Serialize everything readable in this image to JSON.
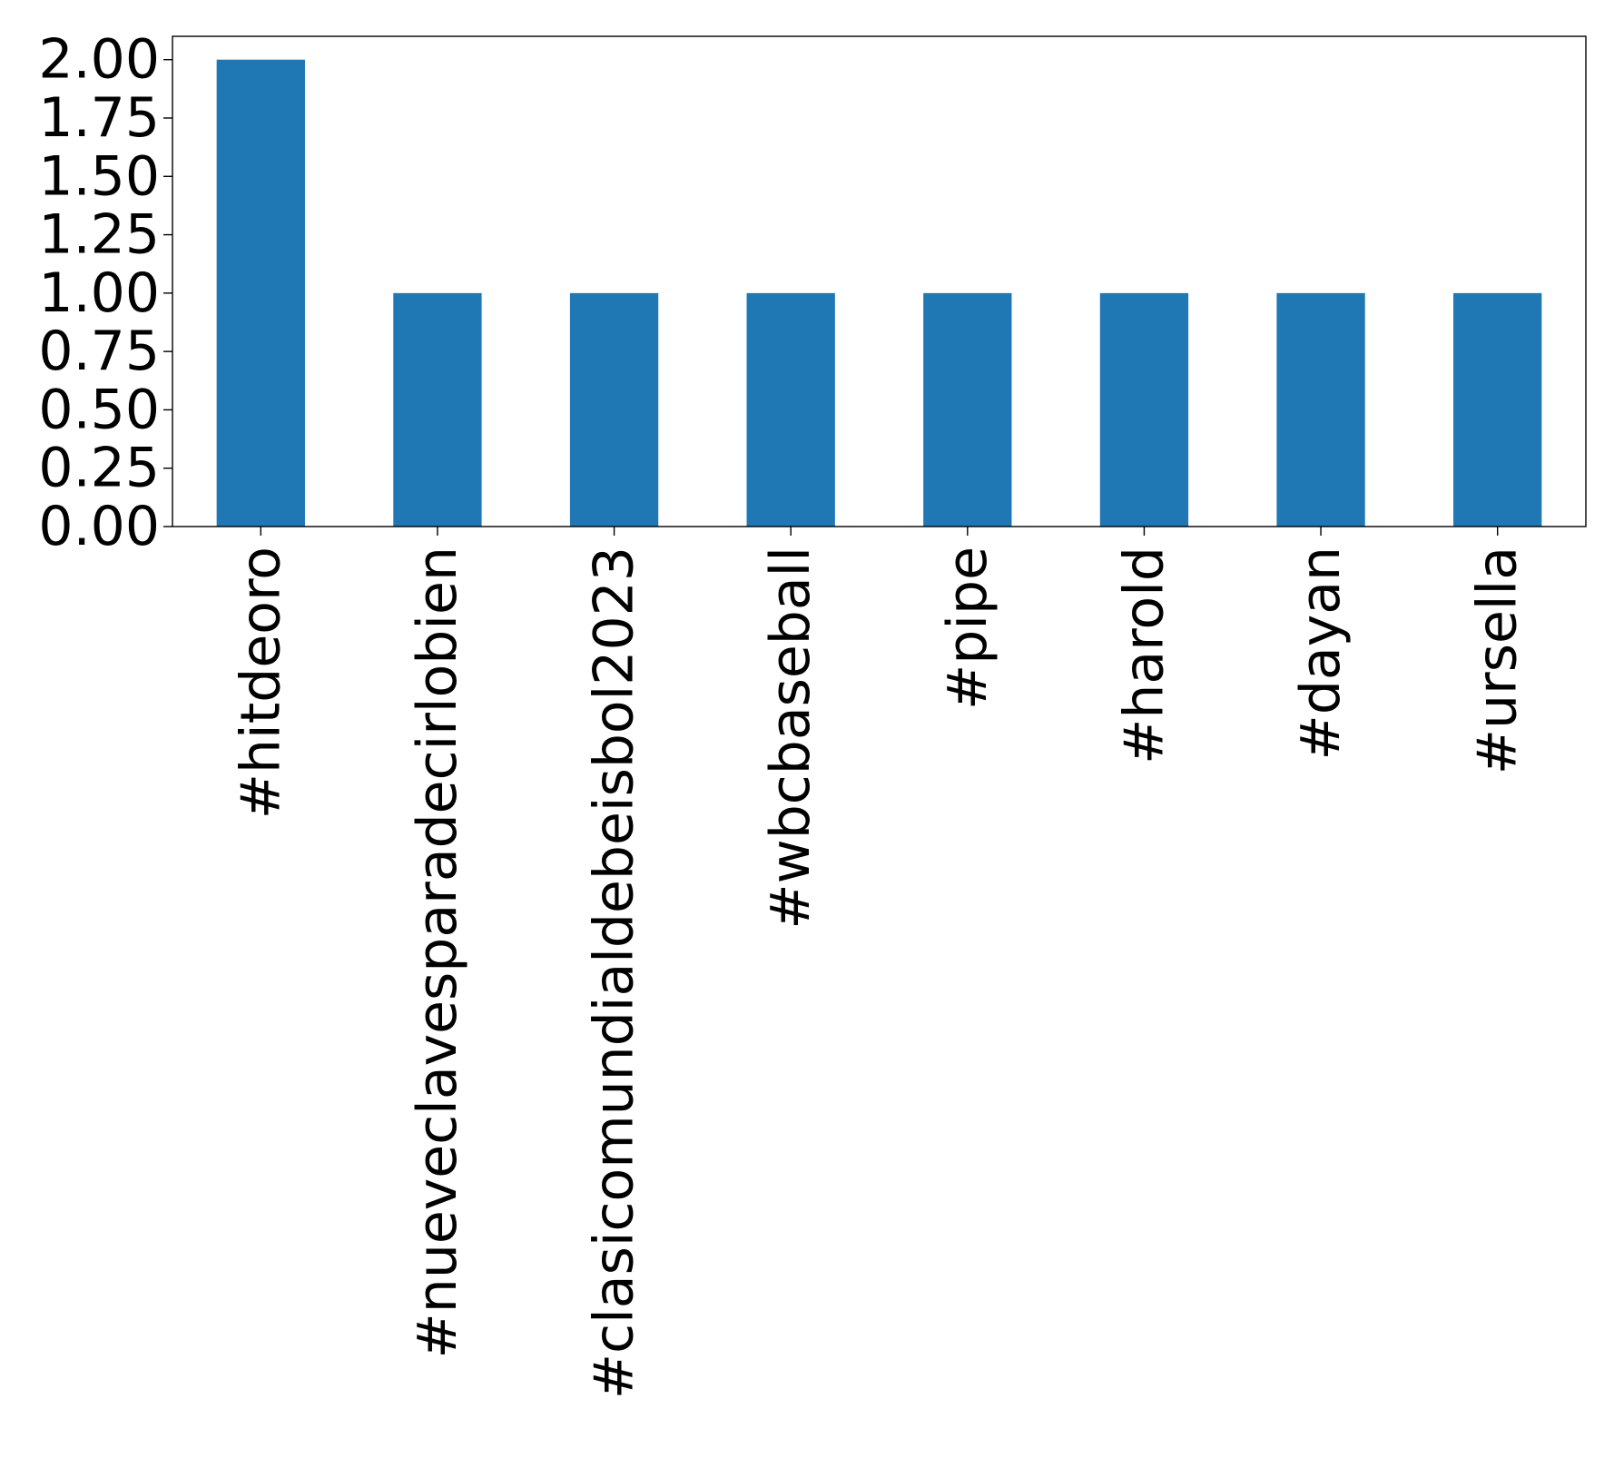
{
  "chart_data": {
    "type": "bar",
    "title": "",
    "xlabel": "",
    "ylabel": "",
    "categories": [
      "#hitdeoro",
      "#nueveclavesparadecirlobien",
      "#clasicomundialdebeisbol2023",
      "#wbcbaseball",
      "#pipe",
      "#harold",
      "#dayan",
      "#ursella"
    ],
    "values": [
      2,
      1,
      1,
      1,
      1,
      1,
      1,
      1
    ],
    "ylim": [
      0,
      2.1
    ],
    "yticks": [
      0,
      0.25,
      0.5,
      0.75,
      1.0,
      1.25,
      1.5,
      1.75,
      2.0
    ],
    "ytick_labels": [
      "0.00",
      "0.25",
      "0.50",
      "0.75",
      "1.00",
      "1.25",
      "1.50",
      "1.75",
      "2.00"
    ],
    "bar_color": "#1f77b4",
    "grid": false,
    "legend": "none"
  }
}
